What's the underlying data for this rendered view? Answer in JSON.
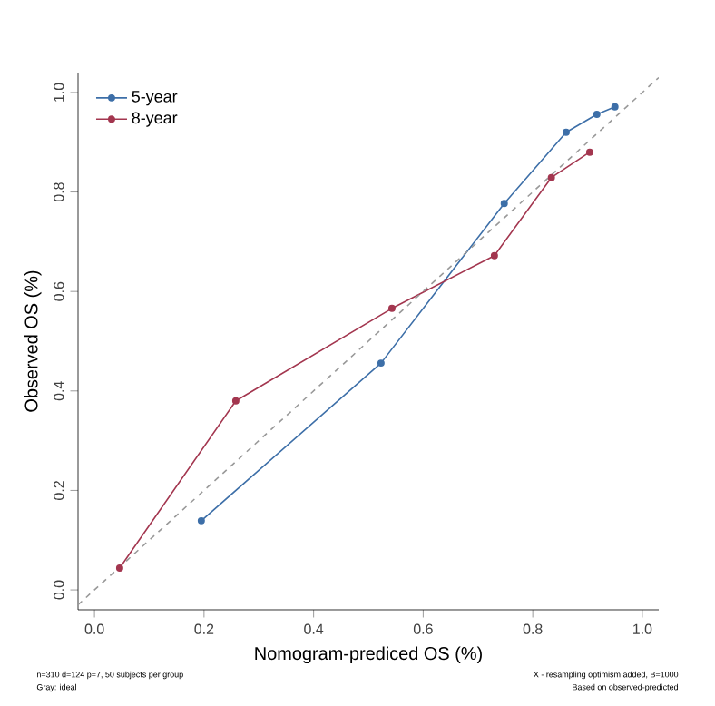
{
  "chart_data": {
    "type": "line",
    "xlabel": "Nomogram-prediced OS (%)",
    "ylabel": "Observed OS (%)",
    "xlim": [
      -0.03,
      1.03
    ],
    "ylim": [
      -0.04,
      1.04
    ],
    "xticks": [
      {
        "value": 0,
        "label": "0.0"
      },
      {
        "value": 0.2,
        "label": "0.2"
      },
      {
        "value": 0.4,
        "label": "0.4"
      },
      {
        "value": 0.6,
        "label": "0.6"
      },
      {
        "value": 0.8,
        "label": "0.8"
      },
      {
        "value": 1,
        "label": "1.0"
      }
    ],
    "yticks": [
      {
        "value": 0,
        "label": "0.0"
      },
      {
        "value": 0.2,
        "label": "0.2"
      },
      {
        "value": 0.4,
        "label": "0.4"
      },
      {
        "value": 0.6,
        "label": "0.6"
      },
      {
        "value": 0.8,
        "label": "0.8"
      },
      {
        "value": 1,
        "label": "1.0"
      }
    ],
    "legend": "top left",
    "marker": "circle",
    "series": [
      {
        "name": "5-year",
        "color": "#3d6fa8",
        "x": [
          0.195,
          0.523,
          0.748,
          0.861,
          0.917,
          0.95
        ],
        "values": [
          0.139,
          0.456,
          0.777,
          0.92,
          0.956,
          0.971
        ]
      },
      {
        "name": "8-year",
        "color": "#a3364f",
        "x": [
          0.046,
          0.258,
          0.543,
          0.73,
          0.834,
          0.904
        ],
        "values": [
          0.044,
          0.38,
          0.566,
          0.672,
          0.829,
          0.88
        ]
      },
      {
        "color": "#999999",
        "line_style": "dashed",
        "marker": "none",
        "x": [
          -0.03,
          1.03
        ],
        "values": [
          -0.03,
          1.03
        ]
      }
    ],
    "annotations": [
      "n=310 d=124 p=7, 50 subjects per group",
      "Gray: ideal",
      "X - resampling optimism added, B=1000",
      "Based on observed-predicted"
    ]
  }
}
